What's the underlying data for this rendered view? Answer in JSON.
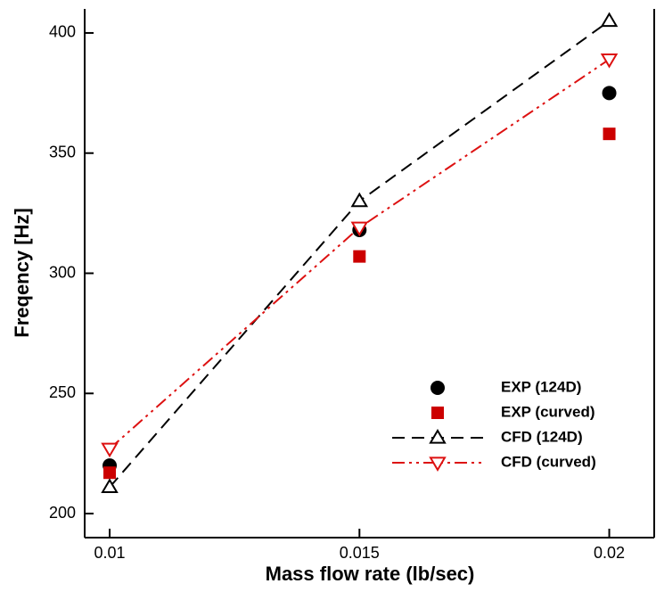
{
  "chart_data": {
    "type": "line",
    "xlabel": "Mass flow rate (lb/sec)",
    "ylabel": "Freqency [Hz]",
    "x": [
      0.01,
      0.015,
      0.02
    ],
    "series": [
      {
        "name": "EXP (124D)",
        "color": "#000000",
        "marker": "circle",
        "line": "none",
        "values": [
          220,
          318,
          375
        ]
      },
      {
        "name": "EXP (curved)",
        "color": "#cc0000",
        "marker": "square",
        "line": "none",
        "values": [
          217,
          307,
          358
        ]
      },
      {
        "name": "CFD (124D)",
        "color": "#000000",
        "marker": "triangle-up",
        "line": "dash",
        "values": [
          211,
          330,
          405
        ]
      },
      {
        "name": "CFD (curved)",
        "color": "#dd1111",
        "marker": "triangle-down",
        "line": "dash-dot-dot",
        "values": [
          227,
          319,
          389
        ]
      }
    ],
    "xlim": [
      0.0095,
      0.0209
    ],
    "ylim": [
      190,
      410
    ],
    "xticks": [
      0.01,
      0.015,
      0.02
    ],
    "yticks": [
      200,
      250,
      300,
      350,
      400
    ],
    "legend": "lower right"
  }
}
